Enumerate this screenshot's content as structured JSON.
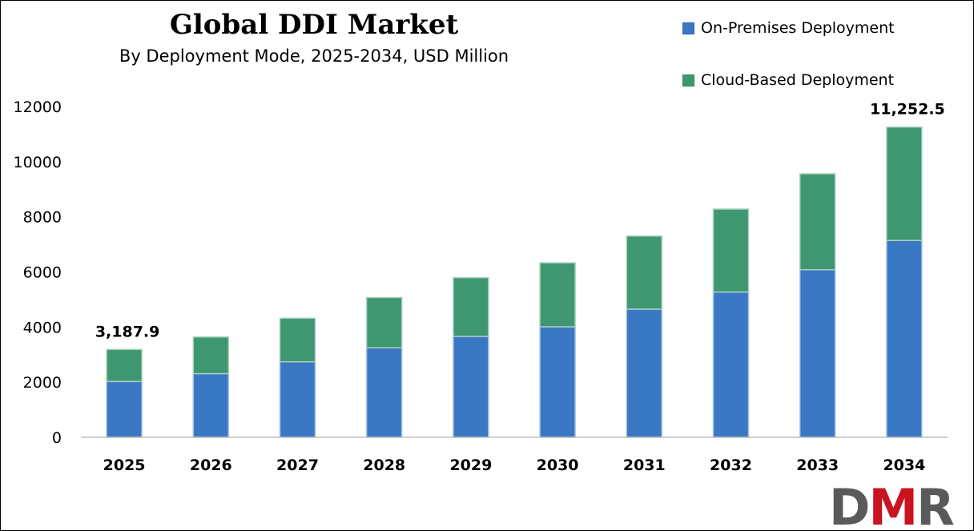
{
  "chart_data": {
    "type": "bar",
    "stacked": true,
    "title": "Global DDI Market",
    "subtitle": "By Deployment Mode, 2025-2034, USD Million",
    "categories": [
      "2025",
      "2026",
      "2027",
      "2028",
      "2029",
      "2030",
      "2031",
      "2032",
      "2033",
      "2034"
    ],
    "series": [
      {
        "name": "On-Premises Deployment",
        "color": "#3b78c3",
        "values": [
          2025,
          2310,
          2740,
          3250,
          3660,
          4010,
          4650,
          5270,
          6080,
          7140
        ]
      },
      {
        "name": "Cloud-Based Deployment",
        "color": "#3f9771",
        "values": [
          1162.9,
          1330,
          1580,
          1820,
          2130,
          2320,
          2650,
          3010,
          3480,
          4112.5
        ]
      }
    ],
    "totals": [
      3187.9,
      3640,
      4320,
      5070,
      5790,
      6330,
      7300,
      8280,
      9560,
      11252.5
    ],
    "data_labels": [
      {
        "category": "2025",
        "text": "3,187.9"
      },
      {
        "category": "2034",
        "text": "11,252.5"
      }
    ],
    "y_ticks": [
      "0",
      "2000",
      "4000",
      "6000",
      "8000",
      "10000",
      "12000"
    ],
    "ylim": [
      0,
      12000
    ],
    "xlabel": "",
    "ylabel": "",
    "grid": false,
    "legend": "top-right"
  },
  "logo": {
    "text": "DMR",
    "colors": [
      "#5a5a5a",
      "#c8141e"
    ]
  }
}
